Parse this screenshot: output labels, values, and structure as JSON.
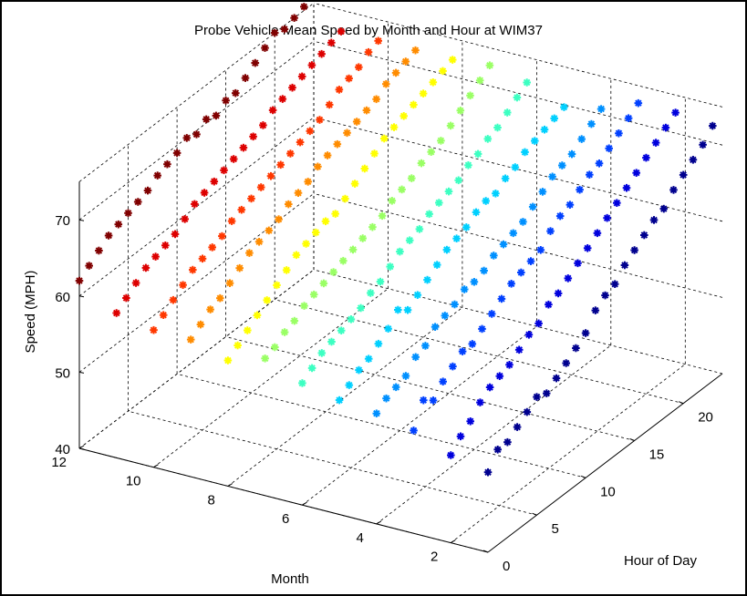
{
  "chart_data": {
    "type": "scatter",
    "title": "Probe Vehicle Mean Speed by Month and Hour at WIM37",
    "xlabel": "Hour of Day",
    "ylabel": "Month",
    "zlabel": "Speed (MPH)",
    "xlim": [
      0,
      24
    ],
    "ylim": [
      1,
      12
    ],
    "zlim": [
      40,
      75
    ],
    "xticks": [
      "0",
      "5",
      "10",
      "15",
      "20"
    ],
    "yticks": [
      "2",
      "4",
      "6",
      "8",
      "10",
      "12"
    ],
    "zticks": [
      "40",
      "50",
      "60",
      "70"
    ],
    "grid": true,
    "x": [
      0,
      1,
      2,
      3,
      4,
      5,
      6,
      7,
      8,
      9,
      10,
      11,
      12,
      13,
      14,
      15,
      16,
      17,
      18,
      19,
      20,
      21,
      22,
      23
    ],
    "series": [
      {
        "month": 1,
        "color": "#00008f",
        "values": [
          50.5,
          52.5,
          52.5,
          53.5,
          54.5,
          55.5,
          55,
          56,
          57,
          58,
          59,
          61,
          62,
          62.5,
          64,
          65,
          66,
          67,
          67.5,
          69,
          70,
          71,
          72,
          73.5
        ]
      },
      {
        "month": 2,
        "color": "#0000dd",
        "values": [
          51.5,
          53,
          54,
          55.5,
          56.5,
          57,
          57.5,
          58.5,
          59.5,
          60,
          61.5,
          62,
          63,
          64,
          65,
          66,
          67,
          68,
          69,
          70,
          71,
          72,
          73,
          74
        ]
      },
      {
        "month": 3,
        "color": "#0040ff",
        "values": [
          53.5,
          56.5,
          55.5,
          57,
          58,
          59,
          59,
          60,
          61,
          62,
          63,
          63.5,
          64,
          64.5,
          66,
          67,
          67.5,
          68.5,
          69.5,
          70,
          71,
          72,
          73,
          74
        ]
      },
      {
        "month": 4,
        "color": "#0090ff",
        "values": [
          54.5,
          55.5,
          56,
          56.5,
          58,
          58.5,
          60,
          60.5,
          61,
          62,
          62,
          62.5,
          63.5,
          64,
          64.5,
          65,
          66,
          67,
          68,
          68.5,
          69,
          70,
          71,
          72
        ]
      },
      {
        "month": 5,
        "color": "#00d0ff",
        "values": [
          55,
          56,
          57,
          57.5,
          58.5,
          59.5,
          61,
          60,
          61,
          62,
          63,
          64,
          64.5,
          65,
          66,
          66.5,
          66.5,
          67.5,
          68,
          69,
          69.5,
          70,
          70.5,
          71
        ]
      },
      {
        "month": 6,
        "color": "#3dffc2",
        "values": [
          56,
          57,
          58,
          58.5,
          59,
          59.5,
          60,
          61,
          61.5,
          62.5,
          63.5,
          64,
          64.5,
          65.5,
          66,
          66.5,
          67,
          68,
          68.5,
          69.5,
          70,
          71,
          72,
          73
        ]
      },
      {
        "month": 7,
        "color": "#9aff65",
        "values": [
          58,
          58.5,
          59.5,
          60,
          61,
          61.5,
          62,
          62.5,
          63,
          63.5,
          64,
          64.5,
          65,
          66,
          66.5,
          67,
          68,
          68.5,
          69,
          70,
          71,
          72,
          73,
          74
        ]
      },
      {
        "month": 8,
        "color": "#ffff00",
        "values": [
          56.5,
          57.5,
          58.5,
          59.5,
          60.5,
          61.5,
          62.5,
          63.5,
          64,
          64.5,
          65,
          65,
          66,
          67,
          68,
          69,
          70,
          70.5,
          71,
          71.5,
          72,
          72.5,
          73,
          73.5
        ]
      },
      {
        "month": 9,
        "color": "#ff8c00",
        "values": [
          58,
          59,
          60,
          60.5,
          61.5,
          62.5,
          63.5,
          64,
          64.5,
          65,
          66,
          66.5,
          67,
          68,
          68.5,
          69,
          69.5,
          70,
          70.5,
          71,
          72,
          72.5,
          73,
          73.5
        ]
      },
      {
        "month": 10,
        "color": "#ff3800",
        "values": [
          58,
          59,
          60,
          61,
          62,
          62.5,
          63,
          63.5,
          64.5,
          65,
          65.5,
          66,
          66.5,
          67,
          67.5,
          68,
          68.5,
          69,
          70,
          71,
          71.5,
          72,
          73,
          73.5
        ]
      },
      {
        "month": 11,
        "color": "#dd0000",
        "values": [
          59,
          60,
          61,
          62,
          62.5,
          63,
          63.5,
          64.5,
          65.5,
          66,
          66.5,
          67,
          67.5,
          68,
          68.5,
          69,
          70,
          70.5,
          71,
          71.5,
          72,
          72.5,
          73,
          73.5
        ]
      },
      {
        "month": 12,
        "color": "#800000",
        "values": [
          62,
          63,
          64,
          65,
          65.5,
          66,
          66.5,
          67,
          68,
          68.5,
          69,
          70,
          69.5,
          70.5,
          70,
          71,
          71,
          72,
          73,
          74,
          75,
          74.5,
          75,
          75.5
        ]
      }
    ]
  }
}
